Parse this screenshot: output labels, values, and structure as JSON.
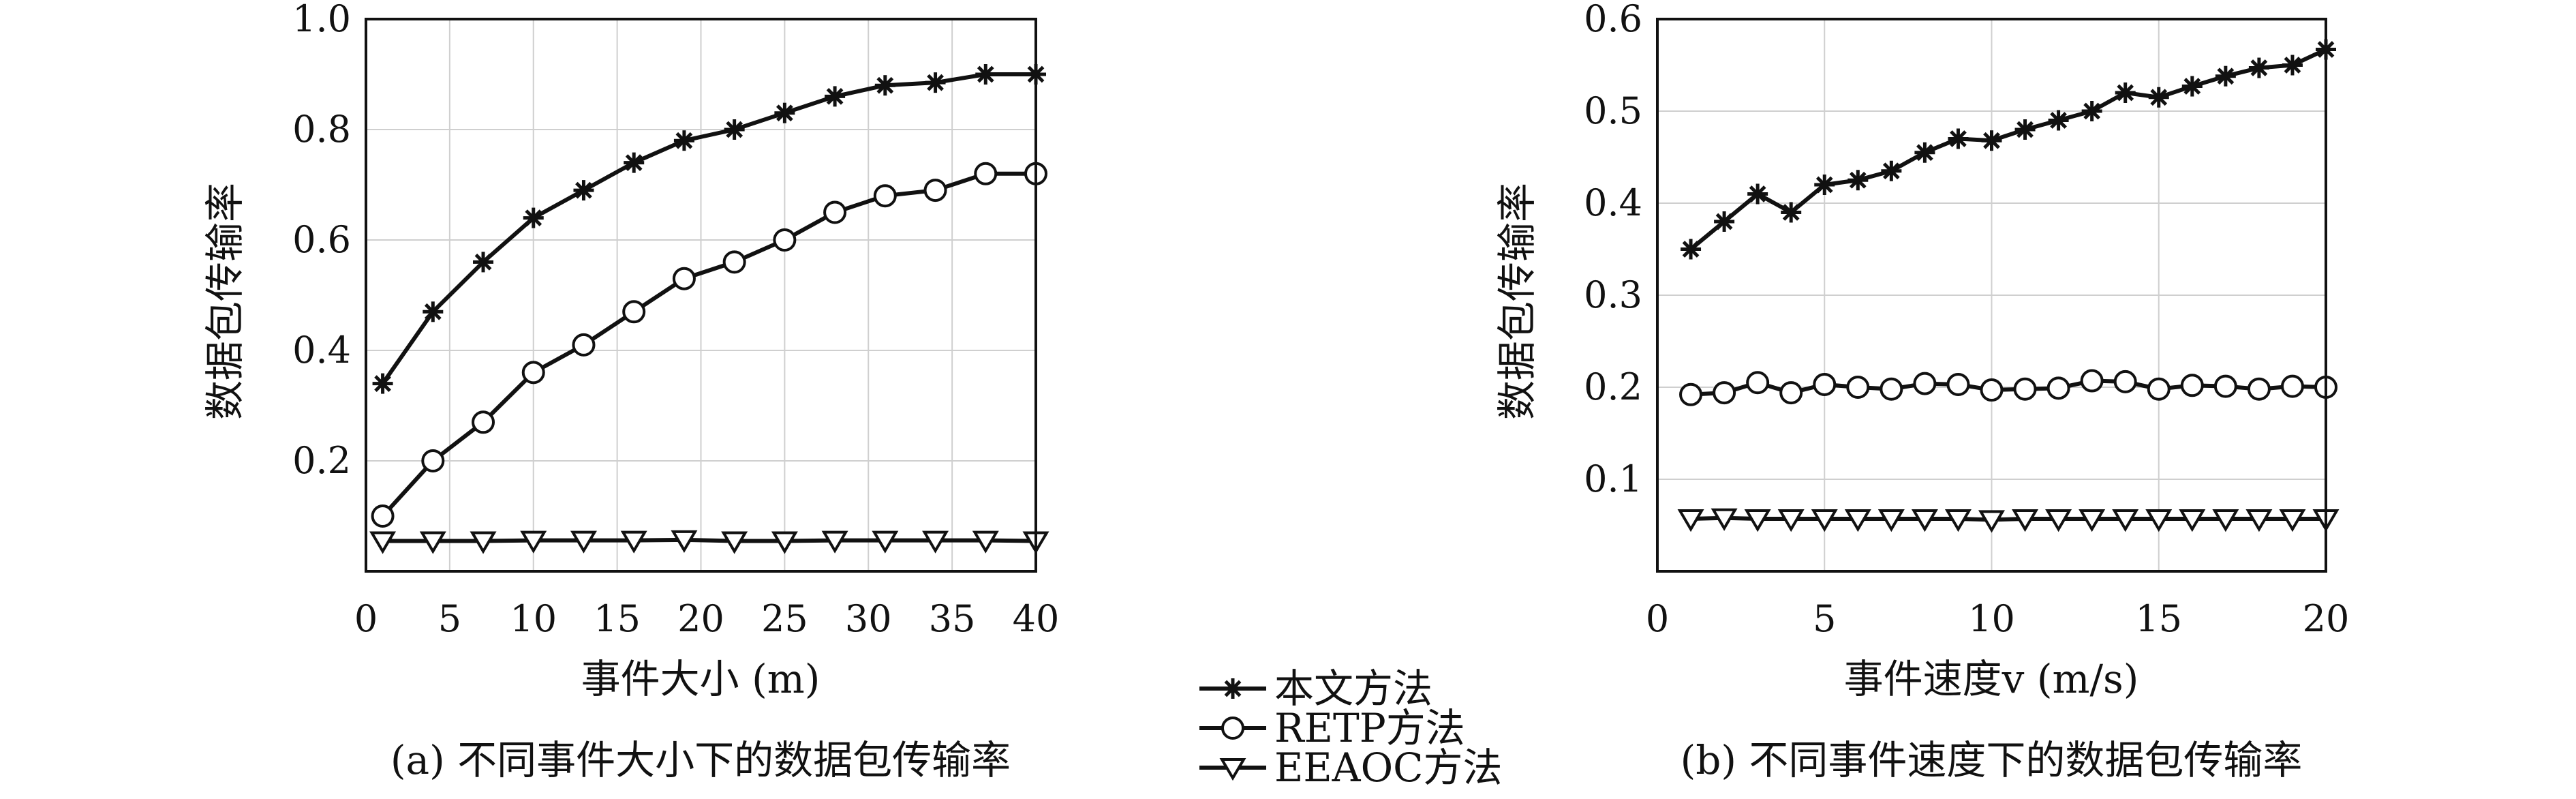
{
  "legend": {
    "items": [
      {
        "label": "本文方法",
        "marker": "star"
      },
      {
        "label": "RETP方法",
        "marker": "circle"
      },
      {
        "label": "EEAOC方法",
        "marker": "triangle-down"
      }
    ]
  },
  "chart_data": [
    {
      "type": "line",
      "caption": "(a) 不同事件大小下的数据包传输率",
      "xlabel": "事件大小 (m)",
      "ylabel": "数据包传输率",
      "xlim": [
        0,
        40
      ],
      "ylim": [
        0,
        1.0
      ],
      "xticks": [
        0,
        5,
        10,
        15,
        20,
        25,
        30,
        35,
        40
      ],
      "yticks": [
        0.2,
        0.4,
        0.6,
        0.8,
        1.0
      ],
      "ytick_labels": [
        "0.2",
        "0.4",
        "0.6",
        "0.8",
        "1.0"
      ],
      "grid": true,
      "x": [
        1,
        4,
        7,
        10,
        13,
        16,
        19,
        22,
        25,
        28,
        31,
        34,
        37,
        40
      ],
      "series": [
        {
          "name": "本文方法",
          "marker": "star",
          "values": [
            0.34,
            0.47,
            0.56,
            0.64,
            0.69,
            0.74,
            0.78,
            0.8,
            0.83,
            0.86,
            0.88,
            0.885,
            0.9,
            0.9
          ]
        },
        {
          "name": "RETP方法",
          "marker": "circle",
          "values": [
            0.1,
            0.2,
            0.27,
            0.36,
            0.41,
            0.47,
            0.53,
            0.56,
            0.6,
            0.65,
            0.68,
            0.69,
            0.72,
            0.72
          ]
        },
        {
          "name": "EEAOC方法",
          "marker": "triangle-down",
          "values": [
            0.055,
            0.055,
            0.055,
            0.056,
            0.056,
            0.056,
            0.057,
            0.055,
            0.055,
            0.056,
            0.056,
            0.056,
            0.056,
            0.055
          ]
        }
      ]
    },
    {
      "type": "line",
      "caption": "(b) 不同事件速度下的数据包传输率",
      "xlabel": "事件速度v (m/s)",
      "ylabel": "数据包传输率",
      "xlim": [
        0,
        20
      ],
      "ylim": [
        0,
        0.6
      ],
      "xticks": [
        0,
        5,
        10,
        15,
        20
      ],
      "yticks": [
        0.1,
        0.2,
        0.3,
        0.4,
        0.5,
        0.6
      ],
      "ytick_labels": [
        "0.1",
        "0.2",
        "0.3",
        "0.4",
        "0.5",
        "0.6"
      ],
      "grid": true,
      "x": [
        1,
        2,
        3,
        4,
        5,
        6,
        7,
        8,
        9,
        10,
        11,
        12,
        13,
        14,
        15,
        16,
        17,
        18,
        19,
        20
      ],
      "series": [
        {
          "name": "本文方法",
          "marker": "star",
          "values": [
            0.35,
            0.38,
            0.41,
            0.39,
            0.42,
            0.425,
            0.435,
            0.455,
            0.47,
            0.468,
            0.48,
            0.49,
            0.5,
            0.52,
            0.515,
            0.527,
            0.538,
            0.547,
            0.55,
            0.567
          ]
        },
        {
          "name": "RETP方法",
          "marker": "circle",
          "values": [
            0.192,
            0.194,
            0.205,
            0.194,
            0.203,
            0.2,
            0.198,
            0.204,
            0.203,
            0.197,
            0.198,
            0.199,
            0.207,
            0.206,
            0.198,
            0.202,
            0.201,
            0.198,
            0.201,
            0.2
          ]
        },
        {
          "name": "EEAOC方法",
          "marker": "triangle-down",
          "values": [
            0.057,
            0.058,
            0.057,
            0.057,
            0.057,
            0.057,
            0.057,
            0.057,
            0.057,
            0.056,
            0.057,
            0.057,
            0.057,
            0.057,
            0.057,
            0.057,
            0.057,
            0.057,
            0.057,
            0.057
          ]
        }
      ]
    }
  ]
}
